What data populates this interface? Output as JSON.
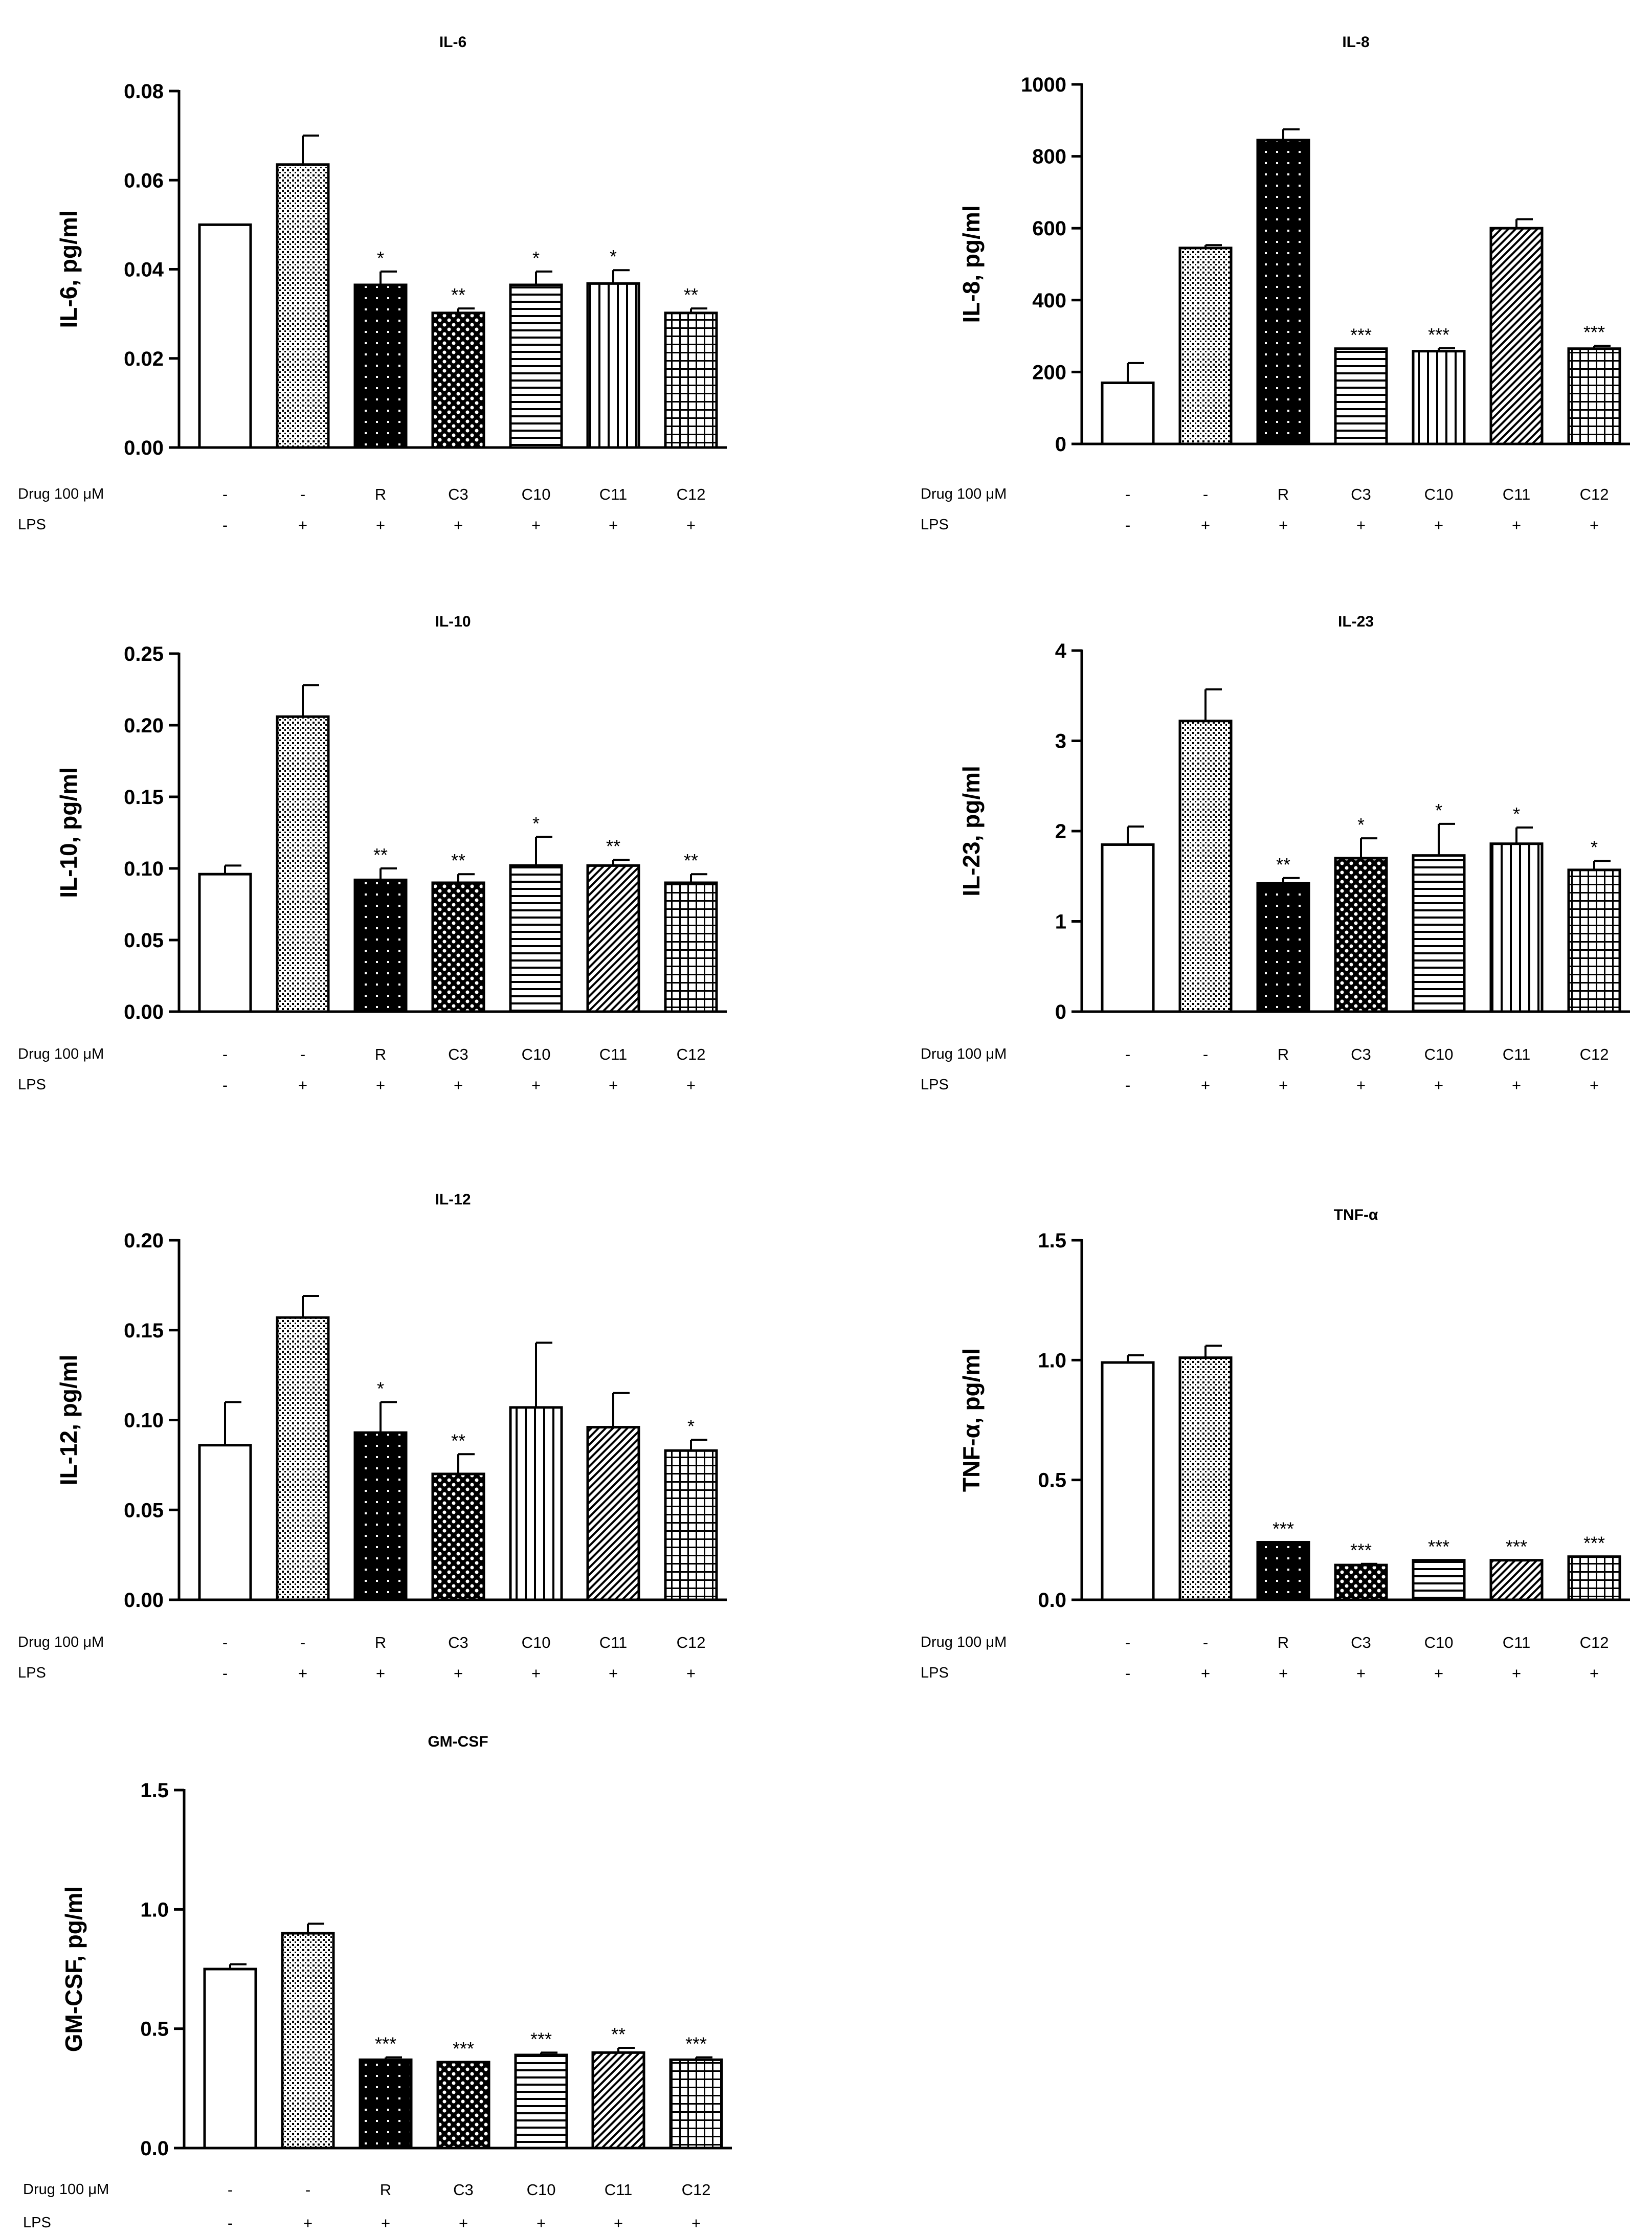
{
  "patterns": [
    "open",
    "dense-dots",
    "black-dots",
    "grid-dots",
    "h-stripes",
    "v-stripes",
    "diag-stripes",
    "crosshatch"
  ],
  "chart_data": [
    {
      "type": "bar",
      "title": "IL-6",
      "ylabel": "IL-6, pg/ml",
      "ylim": [
        0,
        0.08
      ],
      "yticks": [
        "0.00",
        "0.02",
        "0.04",
        "0.06",
        "0.08"
      ],
      "conditions": {
        "drug_label": "Drug 100 μM",
        "drug": [
          "-",
          "-",
          "R",
          "C3",
          "C10",
          "C11",
          "C12"
        ],
        "lps_label": "LPS",
        "lps": [
          "-",
          "+",
          "+",
          "+",
          "+",
          "+",
          "+"
        ]
      },
      "values": [
        0.05,
        0.0635,
        0.0365,
        0.0302,
        0.0365,
        0.0368,
        0.0302
      ],
      "errors": [
        0,
        0.0065,
        0.003,
        0.001,
        0.003,
        0.003,
        0.001
      ],
      "bar_patterns": [
        "open",
        "dense-dots",
        "black-dots",
        "grid-dots",
        "h-stripes",
        "v-stripes",
        "crosshatch"
      ],
      "significance": [
        "",
        "",
        "*",
        "**",
        "*",
        "*",
        "**"
      ]
    },
    {
      "type": "bar",
      "title": "IL-8",
      "ylabel": "IL-8, pg/ml",
      "ylim": [
        0,
        1000
      ],
      "yticks": [
        "0",
        "200",
        "400",
        "600",
        "800",
        "1000"
      ],
      "conditions": {
        "drug_label": "Drug 100 μM",
        "drug": [
          "-",
          "-",
          "R",
          "C3",
          "C10",
          "C11",
          "C12"
        ],
        "lps_label": "LPS",
        "lps": [
          "-",
          "+",
          "+",
          "+",
          "+",
          "+",
          "+"
        ]
      },
      "values": [
        170,
        545,
        845,
        265,
        258,
        600,
        265
      ],
      "errors": [
        55,
        8,
        30,
        0,
        8,
        25,
        8
      ],
      "bar_patterns": [
        "open",
        "dense-dots",
        "black-dots",
        "h-stripes",
        "v-stripes",
        "diag-stripes",
        "crosshatch"
      ],
      "significance": [
        "",
        "",
        "",
        "***",
        "***",
        "",
        "***"
      ]
    },
    {
      "type": "bar",
      "title": "IL-10",
      "ylabel": "IL-10, pg/ml",
      "ylim": [
        0,
        0.25
      ],
      "yticks": [
        "0.00",
        "0.05",
        "0.10",
        "0.15",
        "0.20",
        "0.25"
      ],
      "conditions": {
        "drug_label": "Drug 100 μM",
        "drug": [
          "-",
          "-",
          "R",
          "C3",
          "C10",
          "C11",
          "C12"
        ],
        "lps_label": "LPS",
        "lps": [
          "-",
          "+",
          "+",
          "+",
          "+",
          "+",
          "+"
        ]
      },
      "values": [
        0.096,
        0.206,
        0.092,
        0.09,
        0.102,
        0.102,
        0.09
      ],
      "errors": [
        0.006,
        0.022,
        0.008,
        0.006,
        0.02,
        0.004,
        0.006
      ],
      "bar_patterns": [
        "open",
        "dense-dots",
        "black-dots",
        "grid-dots",
        "h-stripes",
        "diag-stripes",
        "crosshatch"
      ],
      "significance": [
        "",
        "",
        "**",
        "**",
        "*",
        "**",
        "**"
      ]
    },
    {
      "type": "bar",
      "title": "IL-23",
      "ylabel": "IL-23, pg/ml",
      "ylim": [
        0,
        4
      ],
      "yticks": [
        "0",
        "1",
        "2",
        "3",
        "4"
      ],
      "conditions": {
        "drug_label": "Drug 100 μM",
        "drug": [
          "-",
          "-",
          "R",
          "C3",
          "C10",
          "C11",
          "C12"
        ],
        "lps_label": "LPS",
        "lps": [
          "-",
          "+",
          "+",
          "+",
          "+",
          "+",
          "+"
        ]
      },
      "values": [
        1.85,
        3.22,
        1.42,
        1.7,
        1.73,
        1.86,
        1.57
      ],
      "errors": [
        0.2,
        0.35,
        0.06,
        0.22,
        0.35,
        0.18,
        0.1
      ],
      "bar_patterns": [
        "open",
        "dense-dots",
        "black-dots",
        "grid-dots",
        "h-stripes",
        "v-stripes",
        "crosshatch"
      ],
      "significance": [
        "",
        "",
        "**",
        "*",
        "*",
        "*",
        "*"
      ]
    },
    {
      "type": "bar",
      "title": "IL-12",
      "ylabel": "IL-12, pg/ml",
      "ylim": [
        0,
        0.2
      ],
      "yticks": [
        "0.00",
        "0.05",
        "0.10",
        "0.15",
        "0.20"
      ],
      "conditions": {
        "drug_label": "Drug 100 μM",
        "drug": [
          "-",
          "-",
          "R",
          "C3",
          "C10",
          "C11",
          "C12"
        ],
        "lps_label": "LPS",
        "lps": [
          "-",
          "+",
          "+",
          "+",
          "+",
          "+",
          "+"
        ]
      },
      "values": [
        0.086,
        0.157,
        0.093,
        0.07,
        0.107,
        0.096,
        0.083
      ],
      "errors": [
        0.024,
        0.012,
        0.017,
        0.011,
        0.036,
        0.019,
        0.006
      ],
      "bar_patterns": [
        "open",
        "dense-dots",
        "black-dots",
        "grid-dots",
        "v-stripes",
        "diag-stripes",
        "crosshatch"
      ],
      "significance": [
        "",
        "",
        "*",
        "**",
        "",
        "",
        "*"
      ]
    },
    {
      "type": "bar",
      "title": "TNF-α",
      "ylabel": "TNF-α, pg/ml",
      "ylim": [
        0,
        1.5
      ],
      "yticks": [
        "0.0",
        "0.5",
        "1.0",
        "1.5"
      ],
      "conditions": {
        "drug_label": "Drug 100 μM",
        "drug": [
          "-",
          "-",
          "R",
          "C3",
          "C10",
          "C11",
          "C12"
        ],
        "lps_label": "LPS",
        "lps": [
          "-",
          "+",
          "+",
          "+",
          "+",
          "+",
          "+"
        ]
      },
      "values": [
        0.99,
        1.01,
        0.24,
        0.145,
        0.165,
        0.165,
        0.18
      ],
      "errors": [
        0.03,
        0.05,
        0,
        0.005,
        0,
        0,
        0
      ],
      "bar_patterns": [
        "open",
        "dense-dots",
        "black-dots",
        "grid-dots",
        "h-stripes",
        "diag-stripes",
        "crosshatch"
      ],
      "significance": [
        "",
        "",
        "***",
        "***",
        "***",
        "***",
        "***"
      ]
    },
    {
      "type": "bar",
      "title": "GM-CSF",
      "ylabel": "GM-CSF, pg/ml",
      "ylim": [
        0,
        1.5
      ],
      "yticks": [
        "0.0",
        "0.5",
        "1.0",
        "1.5"
      ],
      "conditions": {
        "drug_label": "Drug 100 μM",
        "drug": [
          "-",
          "-",
          "R",
          "C3",
          "C10",
          "C11",
          "C12"
        ],
        "lps_label": "LPS",
        "lps": [
          "-",
          "+",
          "+",
          "+",
          "+",
          "+",
          "+"
        ]
      },
      "values": [
        0.75,
        0.9,
        0.37,
        0.36,
        0.39,
        0.4,
        0.37
      ],
      "errors": [
        0.02,
        0.04,
        0.01,
        0,
        0.01,
        0.02,
        0.01
      ],
      "bar_patterns": [
        "open",
        "dense-dots",
        "black-dots",
        "grid-dots",
        "h-stripes",
        "diag-stripes",
        "crosshatch"
      ],
      "significance": [
        "",
        "",
        "***",
        "***",
        "***",
        "**",
        "***"
      ]
    }
  ]
}
